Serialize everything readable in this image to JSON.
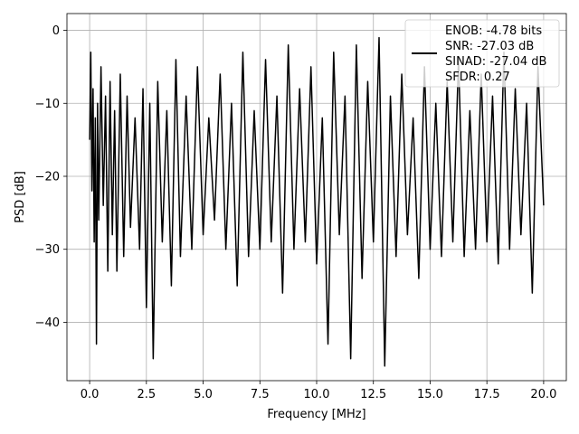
{
  "chart_data": {
    "type": "line",
    "title": "",
    "xlabel": "Frequency [MHz]",
    "ylabel": "PSD [dB]",
    "xlim": [
      -1.0,
      21.0
    ],
    "ylim": [
      -48.0,
      2.3
    ],
    "xticks": [
      0.0,
      2.5,
      5.0,
      7.5,
      10.0,
      12.5,
      15.0,
      17.5,
      20.0
    ],
    "xtick_labels": [
      "0.0",
      "2.5",
      "5.0",
      "7.5",
      "10.0",
      "12.5",
      "15.0",
      "17.5",
      "20.0"
    ],
    "yticks": [
      0,
      -10,
      -20,
      -30,
      -40
    ],
    "ytick_labels": [
      "0",
      "−10",
      "−20",
      "−30",
      "−40"
    ],
    "grid": true,
    "legend_position": "top-right",
    "legend_lines": [
      "ENOB: -4.78 bits",
      "SNR: -27.03 dB",
      "SINAD: -27.04 dB",
      "SFDR: 0.27"
    ],
    "series": [
      {
        "color": "#000000",
        "x": [
          0.0,
          0.05,
          0.1,
          0.15,
          0.2,
          0.25,
          0.3,
          0.35,
          0.4,
          0.5,
          0.6,
          0.7,
          0.8,
          0.9,
          1.0,
          1.1,
          1.2,
          1.35,
          1.5,
          1.65,
          1.8,
          2.0,
          2.2,
          2.35,
          2.5,
          2.65,
          2.8,
          3.0,
          3.2,
          3.4,
          3.6,
          3.8,
          4.0,
          4.25,
          4.5,
          4.75,
          5.0,
          5.25,
          5.5,
          5.75,
          6.0,
          6.25,
          6.5,
          6.75,
          7.0,
          7.25,
          7.5,
          7.75,
          8.0,
          8.25,
          8.5,
          8.75,
          9.0,
          9.25,
          9.5,
          9.75,
          10.0,
          10.25,
          10.5,
          10.75,
          11.0,
          11.25,
          11.5,
          11.75,
          12.0,
          12.25,
          12.5,
          12.75,
          13.0,
          13.25,
          13.5,
          13.75,
          14.0,
          14.25,
          14.5,
          14.75,
          15.0,
          15.25,
          15.5,
          15.75,
          16.0,
          16.25,
          16.5,
          16.75,
          17.0,
          17.25,
          17.5,
          17.75,
          18.0,
          18.25,
          18.5,
          18.75,
          19.0,
          19.25,
          19.5,
          19.75,
          20.0
        ],
        "y": [
          -15.0,
          -3.0,
          -22.0,
          -8.0,
          -29.0,
          -12.0,
          -43.0,
          -10.0,
          -26.0,
          -5.0,
          -24.0,
          -9.0,
          -33.0,
          -7.0,
          -28.0,
          -11.0,
          -33.0,
          -6.0,
          -31.0,
          -9.0,
          -27.0,
          -12.0,
          -30.0,
          -8.0,
          -38.0,
          -10.0,
          -45.0,
          -7.0,
          -29.0,
          -11.0,
          -35.0,
          -4.0,
          -31.0,
          -9.0,
          -30.0,
          -5.0,
          -28.0,
          -12.0,
          -26.0,
          -6.0,
          -30.0,
          -10.0,
          -35.0,
          -3.0,
          -31.0,
          -11.0,
          -30.0,
          -4.0,
          -29.0,
          -9.0,
          -36.0,
          -2.0,
          -30.0,
          -8.0,
          -29.0,
          -5.0,
          -32.0,
          -12.0,
          -43.0,
          -3.0,
          -28.0,
          -9.0,
          -45.0,
          -2.0,
          -34.0,
          -7.0,
          -29.0,
          -1.0,
          -46.0,
          -9.0,
          -31.0,
          -6.0,
          -28.0,
          -12.0,
          -34.0,
          -5.0,
          -30.0,
          -10.0,
          -31.0,
          -7.0,
          -29.0,
          -4.0,
          -31.0,
          -11.0,
          -30.0,
          -6.0,
          -29.0,
          -9.0,
          -32.0,
          -3.0,
          -30.0,
          -8.0,
          -28.0,
          -10.0,
          -36.0,
          -5.0,
          -24.0
        ]
      }
    ]
  }
}
